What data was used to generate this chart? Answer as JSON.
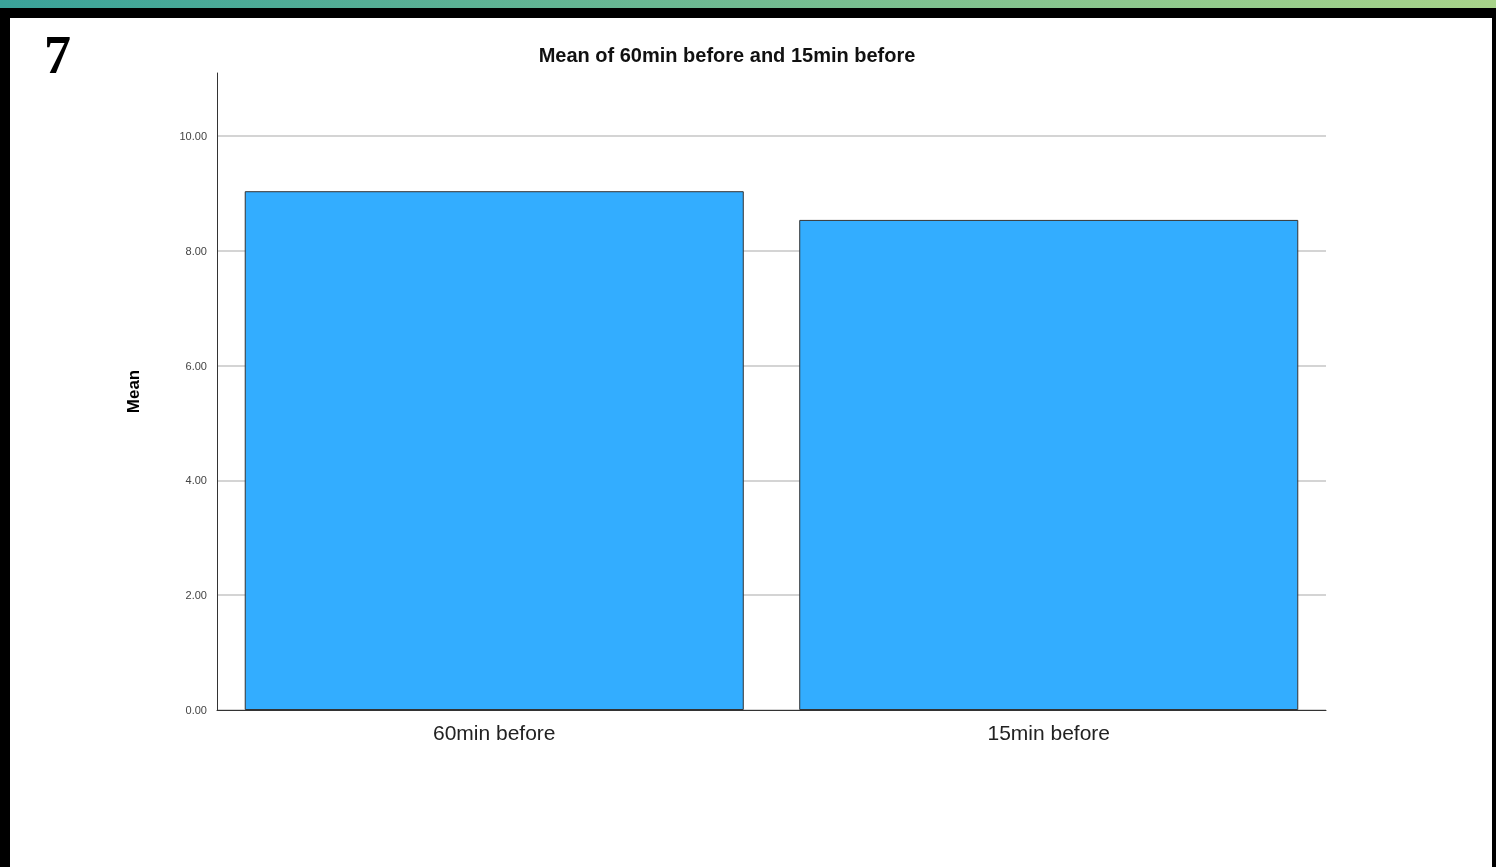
{
  "chart_data": {
    "type": "bar",
    "title": "Mean of 60min before and 15min before",
    "ylabel": "Mean",
    "categories": [
      "60min before",
      "15min before"
    ],
    "values": [
      9.04,
      8.54
    ],
    "color": "#33adff",
    "ylim": [
      0,
      11.1
    ],
    "yticks": [
      {
        "value": 0,
        "label": "0.00"
      },
      {
        "value": 2,
        "label": "2.00"
      },
      {
        "value": 4,
        "label": "4.00"
      },
      {
        "value": 6,
        "label": "6.00"
      },
      {
        "value": 8,
        "label": "8.00"
      },
      {
        "value": 10,
        "label": "10.00"
      }
    ],
    "grid": "y",
    "annotations": [
      "7"
    ]
  }
}
